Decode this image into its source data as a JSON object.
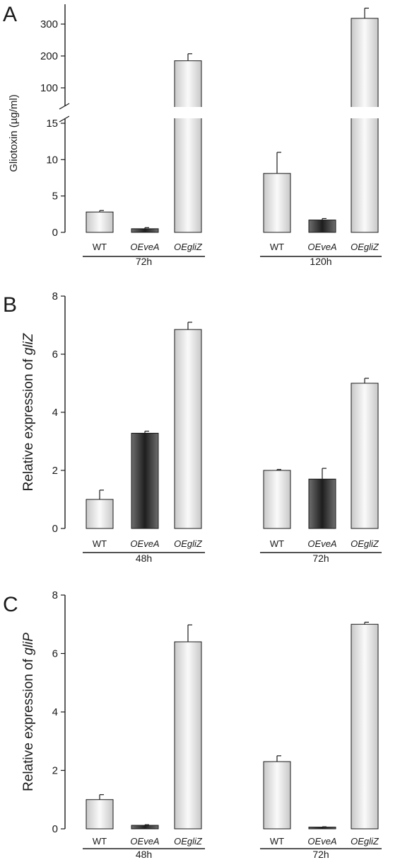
{
  "colors": {
    "axis": "#1a1a1a",
    "bar_light_edge": "#c8c8c8",
    "bar_light_mid": "#fafafa",
    "bar_dark_edge": "#6e6e6e",
    "bar_dark_mid": "#1e1e1e"
  },
  "chart_data": [
    {
      "panel": "A",
      "type": "bar",
      "ylabel": "Gliotoxin (µg/ml)",
      "axis_break": {
        "lower_range": [
          0,
          15
        ],
        "upper_range": [
          15,
          350
        ],
        "break_between": [
          15,
          100
        ]
      },
      "yticks_lower": [
        0,
        5,
        10,
        15
      ],
      "yticks_upper": [
        100,
        200,
        300
      ],
      "groups": [
        {
          "label": "72h",
          "bars": [
            {
              "category": "WT",
              "value": 2.8,
              "error": 0.2,
              "style": "light"
            },
            {
              "category": "OEveA",
              "value": 0.5,
              "error": 0.15,
              "style": "dark"
            },
            {
              "category": "OEgliZ",
              "value": 185,
              "error": 22,
              "style": "light"
            }
          ]
        },
        {
          "label": "120h",
          "bars": [
            {
              "category": "WT",
              "value": 8.1,
              "error": 2.9,
              "style": "light"
            },
            {
              "category": "OEveA",
              "value": 1.7,
              "error": 0.2,
              "style": "dark"
            },
            {
              "category": "OEgliZ",
              "value": 318,
              "error": 32,
              "style": "light"
            }
          ]
        }
      ]
    },
    {
      "panel": "B",
      "type": "bar",
      "ylabel": "Relative expression of gliZ",
      "ylim": [
        0,
        8
      ],
      "yticks": [
        0,
        2,
        4,
        6,
        8
      ],
      "groups": [
        {
          "label": "48h",
          "bars": [
            {
              "category": "WT",
              "value": 1.0,
              "error": 0.32,
              "style": "light"
            },
            {
              "category": "OEveA",
              "value": 3.28,
              "error": 0.07,
              "style": "dark"
            },
            {
              "category": "OEgliZ",
              "value": 6.85,
              "error": 0.25,
              "style": "light"
            }
          ]
        },
        {
          "label": "72h",
          "bars": [
            {
              "category": "WT",
              "value": 2.0,
              "error": 0.03,
              "style": "light"
            },
            {
              "category": "OEveA",
              "value": 1.7,
              "error": 0.37,
              "style": "dark"
            },
            {
              "category": "OEgliZ",
              "value": 5.0,
              "error": 0.17,
              "style": "light"
            }
          ]
        }
      ]
    },
    {
      "panel": "C",
      "type": "bar",
      "ylabel": "Relative expression of gliP",
      "ylim": [
        0,
        8
      ],
      "yticks": [
        0,
        2,
        4,
        6,
        8
      ],
      "groups": [
        {
          "label": "48h",
          "bars": [
            {
              "category": "WT",
              "value": 1.0,
              "error": 0.17,
              "style": "light"
            },
            {
              "category": "OEveA",
              "value": 0.12,
              "error": 0.02,
              "style": "dark"
            },
            {
              "category": "OEgliZ",
              "value": 6.4,
              "error": 0.58,
              "style": "light"
            }
          ]
        },
        {
          "label": "72h",
          "bars": [
            {
              "category": "WT",
              "value": 2.3,
              "error": 0.2,
              "style": "light"
            },
            {
              "category": "OEveA",
              "value": 0.06,
              "error": 0.01,
              "style": "dark"
            },
            {
              "category": "OEgliZ",
              "value": 7.0,
              "error": 0.07,
              "style": "light"
            }
          ]
        }
      ]
    }
  ]
}
